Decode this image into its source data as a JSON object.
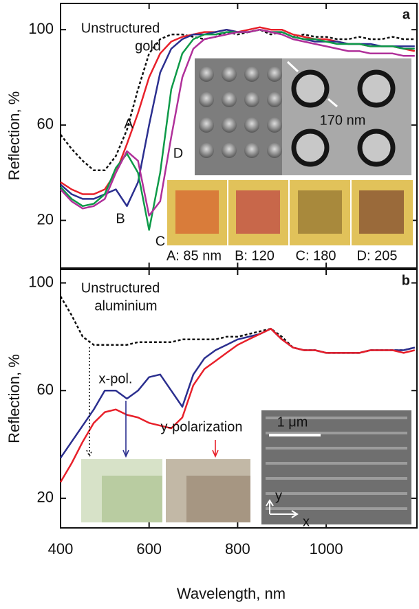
{
  "chart_data": [
    {
      "type": "line",
      "panel_label": "a",
      "y_label": "Reflection, %",
      "x": [
        400,
        425,
        450,
        475,
        500,
        525,
        550,
        575,
        600,
        625,
        650,
        675,
        700,
        725,
        750,
        775,
        800,
        825,
        850,
        875,
        900,
        925,
        950,
        975,
        1000,
        1025,
        1050,
        1075,
        1100,
        1125,
        1150,
        1175,
        1200
      ],
      "xlim": [
        400,
        1205
      ],
      "xticks": [
        400,
        600,
        800,
        1000
      ],
      "ylim": [
        0,
        111
      ],
      "yticks": [
        20,
        60,
        100
      ],
      "series": [
        {
          "name": "Unstructured gold",
          "color": "#111111",
          "dashed": true,
          "values": [
            56,
            50,
            45,
            41,
            41,
            47,
            58,
            75,
            90,
            96,
            98,
            98,
            97,
            96,
            97,
            99,
            98,
            99,
            100,
            98,
            99,
            97,
            98,
            97,
            97,
            96,
            96,
            97,
            96,
            96,
            97,
            96,
            96
          ]
        },
        {
          "name": "A",
          "color": "#e8202a",
          "dashed": false,
          "values": [
            36,
            33,
            31,
            31,
            33,
            40,
            52,
            65,
            80,
            90,
            95,
            97,
            98,
            99,
            99,
            100,
            99,
            100,
            101,
            100,
            100,
            98,
            97,
            96,
            96,
            95,
            94,
            94,
            93,
            93,
            93,
            92,
            91
          ]
        },
        {
          "name": "B",
          "color": "#2b2f8f",
          "dashed": false,
          "values": [
            35,
            31,
            29,
            29,
            31,
            33,
            26,
            36,
            60,
            82,
            92,
            96,
            98,
            98,
            99,
            100,
            99,
            99,
            100,
            99,
            99,
            97,
            96,
            95,
            95,
            95,
            94,
            94,
            94,
            93,
            93,
            93,
            93
          ]
        },
        {
          "name": "C",
          "color": "#0d9a48",
          "dashed": false,
          "values": [
            34,
            29,
            26,
            27,
            31,
            42,
            48,
            40,
            16,
            40,
            75,
            90,
            96,
            98,
            98,
            99,
            99,
            99,
            100,
            99,
            99,
            97,
            96,
            96,
            95,
            94,
            94,
            94,
            93,
            93,
            93,
            92,
            92
          ]
        },
        {
          "name": "D",
          "color": "#b0309a",
          "dashed": false,
          "values": [
            33,
            28,
            25,
            26,
            29,
            40,
            49,
            45,
            22,
            28,
            55,
            80,
            92,
            96,
            97,
            98,
            99,
            99,
            100,
            99,
            98,
            96,
            95,
            94,
            93,
            92,
            91,
            91,
            90,
            90,
            90,
            89,
            89
          ]
        }
      ],
      "annotations": [
        {
          "text": "Unstructured",
          "color": "#111111"
        },
        {
          "text": "gold",
          "color": "#111111"
        },
        {
          "text": "A",
          "color": "#e8202a"
        },
        {
          "text": "B",
          "color": "#2b2f8f"
        },
        {
          "text": "C",
          "color": "#0d9a48"
        },
        {
          "text": "D",
          "color": "#b0309a"
        },
        {
          "text": "170 nm",
          "color": "#ffffff"
        },
        {
          "text": "A: 85 nm",
          "color": "#e8202a"
        },
        {
          "text": "B: 120",
          "color": "#2b2f8f"
        },
        {
          "text": "C: 180",
          "color": "#0d9a48"
        },
        {
          "text": "D: 205",
          "color": "#b0309a"
        }
      ]
    },
    {
      "type": "line",
      "panel_label": "b",
      "y_label": "Reflection, %",
      "x_label": "Wavelength, nm",
      "x": [
        400,
        425,
        450,
        475,
        500,
        525,
        550,
        575,
        600,
        625,
        650,
        675,
        700,
        725,
        750,
        775,
        800,
        825,
        850,
        875,
        900,
        925,
        950,
        975,
        1000,
        1025,
        1050,
        1075,
        1100,
        1125,
        1150,
        1175,
        1200
      ],
      "xlim": [
        400,
        1205
      ],
      "xticks": [
        400,
        600,
        800,
        1000
      ],
      "ylim": [
        9,
        105
      ],
      "yticks": [
        20,
        60,
        100
      ],
      "series": [
        {
          "name": "Unstructured aluminium",
          "color": "#111111",
          "dashed": true,
          "values": [
            95,
            88,
            80,
            77,
            77,
            77,
            77,
            78,
            78,
            78,
            78,
            79,
            79,
            79,
            79,
            80,
            80,
            81,
            82,
            83,
            80,
            76,
            75,
            75,
            74,
            74,
            74,
            74,
            75,
            75,
            75,
            75,
            76
          ]
        },
        {
          "name": "x-pol.",
          "color": "#2b2f8f",
          "dashed": false,
          "values": [
            35,
            41,
            47,
            53,
            60,
            60,
            57,
            60,
            65,
            66,
            60,
            54,
            66,
            72,
            75,
            77,
            79,
            80,
            81,
            83,
            79,
            76,
            75,
            75,
            74,
            74,
            74,
            74,
            75,
            75,
            75,
            75,
            76
          ]
        },
        {
          "name": "y-polarization",
          "color": "#e8202a",
          "dashed": false,
          "values": [
            26,
            33,
            41,
            48,
            52,
            53,
            51,
            50,
            48,
            47,
            46,
            50,
            62,
            68,
            71,
            74,
            77,
            79,
            81,
            83,
            79,
            76,
            75,
            75,
            74,
            74,
            74,
            74,
            75,
            75,
            75,
            74,
            75
          ]
        }
      ],
      "annotations": [
        {
          "text": "Unstructured",
          "color": "#111111"
        },
        {
          "text": "aluminium",
          "color": "#111111"
        },
        {
          "text": "x-pol.",
          "color": "#2b2f8f"
        },
        {
          "text": "y-polarization",
          "color": "#e8202a"
        },
        {
          "text": "1 μm",
          "color": "#ffffff"
        },
        {
          "text": "y",
          "color": "#ffffff"
        },
        {
          "text": "x",
          "color": "#ffffff"
        }
      ]
    }
  ]
}
